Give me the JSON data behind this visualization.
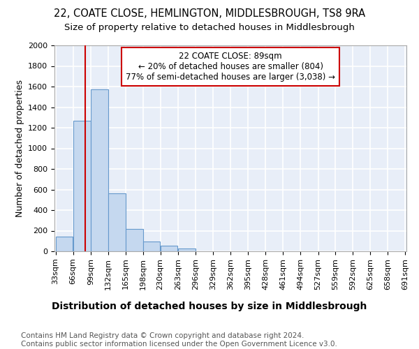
{
  "title1": "22, COATE CLOSE, HEMLINGTON, MIDDLESBROUGH, TS8 9RA",
  "title2": "Size of property relative to detached houses in Middlesbrough",
  "xlabel": "Distribution of detached houses by size in Middlesbrough",
  "ylabel": "Number of detached properties",
  "footnote": "Contains HM Land Registry data © Crown copyright and database right 2024.\nContains public sector information licensed under the Open Government Licence v3.0.",
  "bin_edges": [
    33,
    66,
    99,
    132,
    165,
    198,
    230,
    263,
    296,
    329,
    362,
    395,
    428,
    461,
    494,
    527,
    559,
    592,
    625,
    658,
    691
  ],
  "bar_heights": [
    140,
    1265,
    1570,
    565,
    220,
    95,
    55,
    25,
    0,
    0,
    0,
    0,
    0,
    0,
    0,
    0,
    0,
    0,
    0,
    0
  ],
  "bar_color": "#c5d8ef",
  "bar_edge_color": "#6699cc",
  "property_size": 89,
  "vline_color": "#cc0000",
  "annotation_text": "22 COATE CLOSE: 89sqm\n← 20% of detached houses are smaller (804)\n77% of semi-detached houses are larger (3,038) →",
  "annotation_box_edgecolor": "#cc0000",
  "ylim": [
    0,
    2000
  ],
  "background_color": "#e8eef8",
  "grid_color": "#ffffff",
  "title1_fontsize": 10.5,
  "title2_fontsize": 9.5,
  "xlabel_fontsize": 10,
  "ylabel_fontsize": 9,
  "footnote_fontsize": 7.5,
  "tick_fontsize": 8,
  "annot_fontsize": 8.5
}
